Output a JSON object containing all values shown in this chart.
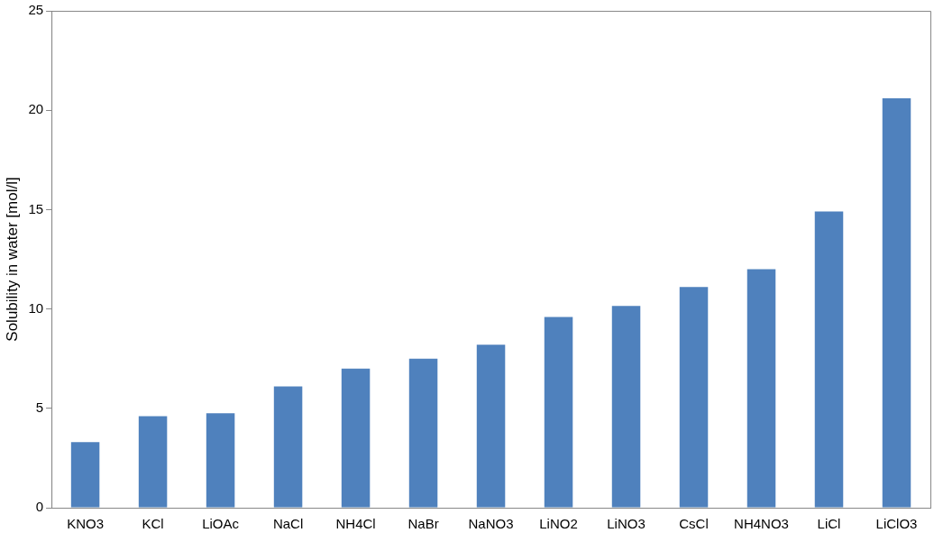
{
  "chart_data": {
    "type": "bar",
    "ylabel": "Solubility in water [mol/l]",
    "categories": [
      "KNO3",
      "KCl",
      "LiOAc",
      "NaCl",
      "NH4Cl",
      "NaBr",
      "NaNO3",
      "LiNO2",
      "LiNO3",
      "CsCl",
      "NH4NO3",
      "LiCl",
      "LiClO3"
    ],
    "values": [
      3.3,
      4.6,
      4.75,
      6.1,
      7.0,
      7.5,
      8.2,
      9.6,
      10.15,
      11.1,
      12.0,
      14.9,
      20.6
    ],
    "color": "#4f81bd",
    "ylim": [
      0,
      25
    ],
    "yticks": [
      0,
      5,
      10,
      15,
      20,
      25
    ],
    "grid": false,
    "legend": false
  }
}
